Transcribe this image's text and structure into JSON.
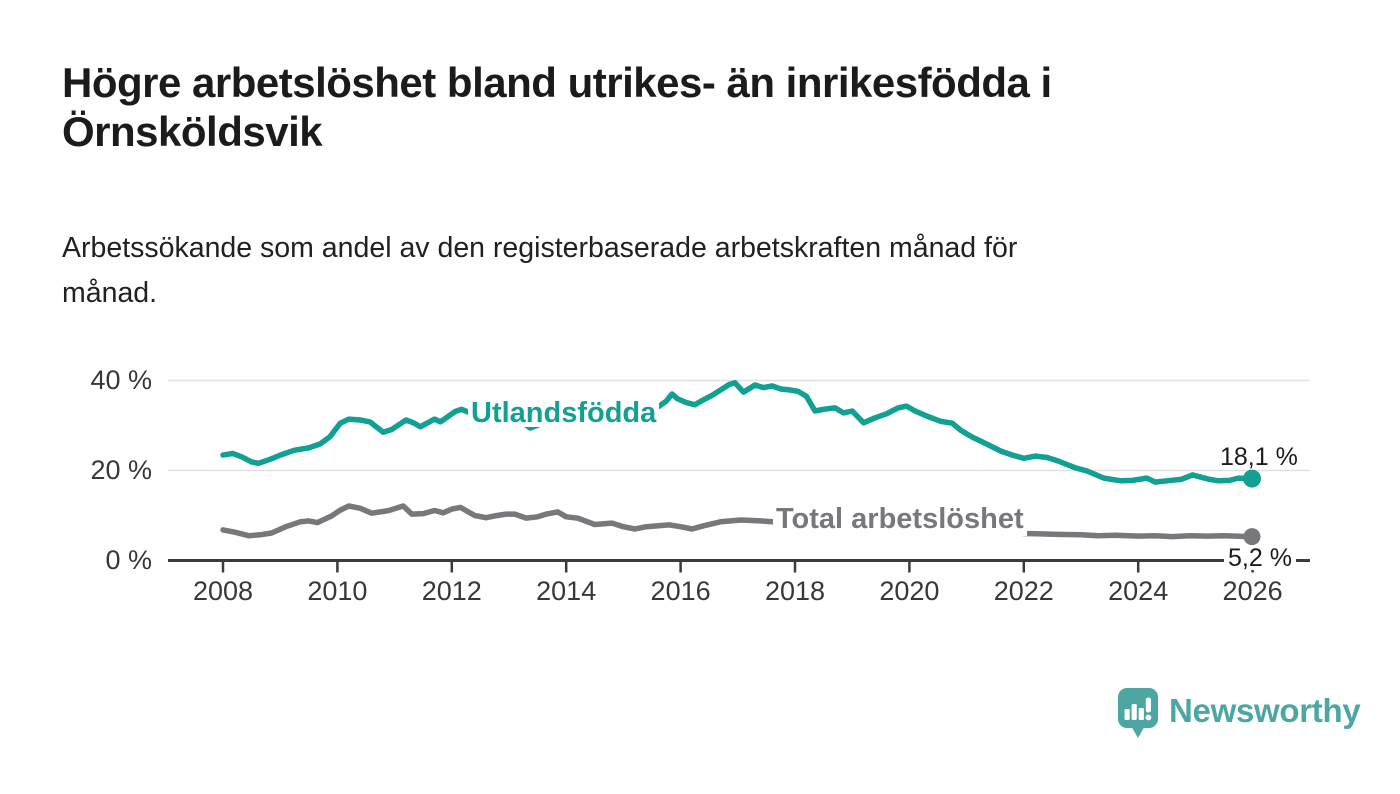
{
  "header": {
    "title_line1": "Högre arbetslöshet bland utrikes- än inrikesfödda i",
    "title_line2": "Örnsköldsvik",
    "subtitle_line1": "Arbetssökande som andel av den registerbaserade arbetskraften månad för",
    "subtitle_line2": "månad."
  },
  "footer": {
    "logo_text": "Newsworthy",
    "brand_color": "#4CA7A3",
    "logo_icon": "speech-bubble-bar-chart-icon"
  },
  "chart_data": {
    "type": "line",
    "title": "Högre arbetslöshet bland utrikes- än inrikesfödda i Örnsköldsvik",
    "subtitle": "Arbetssökande som andel av den registerbaserade arbetskraften månad för månad.",
    "unit": "%",
    "xlim": [
      2007.9,
      2026.6
    ],
    "ylim": [
      0,
      42
    ],
    "grid": "horizontal",
    "grid_color": "#E1E1E1",
    "axis_color": "#3B3B3B",
    "tick_label_color": "#383838",
    "value_label_color": "#1C1C1C",
    "y_ticks": [
      {
        "label": "0 %",
        "value": 0
      },
      {
        "label": "20 %",
        "value": 20
      },
      {
        "label": "40 %",
        "value": 40
      }
    ],
    "x_ticks": [
      {
        "label": "2008",
        "year": 2008
      },
      {
        "label": "2010",
        "year": 2010
      },
      {
        "label": "2012",
        "year": 2012
      },
      {
        "label": "2014",
        "year": 2014
      },
      {
        "label": "2016",
        "year": 2016
      },
      {
        "label": "2018",
        "year": 2018
      },
      {
        "label": "2020",
        "year": 2020
      },
      {
        "label": "2022",
        "year": 2022
      },
      {
        "label": "2024",
        "year": 2024
      },
      {
        "label": "2026",
        "year": 2026
      }
    ],
    "series": [
      {
        "name": "Utlandsfödda",
        "color": "#12A092",
        "end_label": "18,1 %",
        "end_value": 18.1,
        "points": [
          [
            2008.0,
            23.3
          ],
          [
            2008.17,
            23.7
          ],
          [
            2008.33,
            22.9
          ],
          [
            2008.5,
            21.8
          ],
          [
            2008.62,
            21.5
          ],
          [
            2008.83,
            22.4
          ],
          [
            2009.0,
            23.3
          ],
          [
            2009.25,
            24.4
          ],
          [
            2009.5,
            24.9
          ],
          [
            2009.7,
            25.8
          ],
          [
            2009.87,
            27.4
          ],
          [
            2010.05,
            30.4
          ],
          [
            2010.2,
            31.3
          ],
          [
            2010.4,
            31.1
          ],
          [
            2010.57,
            30.7
          ],
          [
            2010.8,
            28.4
          ],
          [
            2010.95,
            29.0
          ],
          [
            2011.2,
            31.1
          ],
          [
            2011.33,
            30.5
          ],
          [
            2011.45,
            29.6
          ],
          [
            2011.7,
            31.3
          ],
          [
            2011.8,
            30.7
          ],
          [
            2012.06,
            33.0
          ],
          [
            2012.17,
            33.5
          ],
          [
            2012.3,
            32.8
          ],
          [
            2012.5,
            33.8
          ],
          [
            2012.7,
            33.2
          ],
          [
            2012.9,
            32.6
          ],
          [
            2013.1,
            31.9
          ],
          [
            2013.37,
            29.3
          ],
          [
            2013.6,
            30.4
          ],
          [
            2013.8,
            31.2
          ],
          [
            2014.0,
            31.8
          ],
          [
            2014.25,
            32.4
          ],
          [
            2014.5,
            32.0
          ],
          [
            2014.75,
            32.8
          ],
          [
            2015.0,
            33.4
          ],
          [
            2015.2,
            32.6
          ],
          [
            2015.45,
            33.4
          ],
          [
            2015.58,
            33.8
          ],
          [
            2015.75,
            35.3
          ],
          [
            2015.85,
            36.9
          ],
          [
            2015.95,
            35.8
          ],
          [
            2016.1,
            35.0
          ],
          [
            2016.25,
            34.5
          ],
          [
            2016.4,
            35.6
          ],
          [
            2016.55,
            36.6
          ],
          [
            2016.7,
            37.8
          ],
          [
            2016.85,
            39.0
          ],
          [
            2016.95,
            39.4
          ],
          [
            2017.1,
            37.3
          ],
          [
            2017.3,
            38.9
          ],
          [
            2017.45,
            38.3
          ],
          [
            2017.6,
            38.7
          ],
          [
            2017.75,
            38.0
          ],
          [
            2017.9,
            37.8
          ],
          [
            2018.05,
            37.5
          ],
          [
            2018.2,
            36.4
          ],
          [
            2018.35,
            33.1
          ],
          [
            2018.5,
            33.5
          ],
          [
            2018.7,
            33.8
          ],
          [
            2018.85,
            32.7
          ],
          [
            2019.0,
            33.1
          ],
          [
            2019.2,
            30.5
          ],
          [
            2019.4,
            31.6
          ],
          [
            2019.6,
            32.5
          ],
          [
            2019.8,
            33.8
          ],
          [
            2019.95,
            34.2
          ],
          [
            2020.1,
            33.1
          ],
          [
            2020.3,
            32.0
          ],
          [
            2020.55,
            30.8
          ],
          [
            2020.75,
            30.4
          ],
          [
            2020.9,
            28.8
          ],
          [
            2021.1,
            27.3
          ],
          [
            2021.3,
            26.1
          ],
          [
            2021.6,
            24.2
          ],
          [
            2021.8,
            23.3
          ],
          [
            2022.0,
            22.6
          ],
          [
            2022.2,
            23.1
          ],
          [
            2022.4,
            22.8
          ],
          [
            2022.6,
            22.0
          ],
          [
            2022.9,
            20.5
          ],
          [
            2023.1,
            19.8
          ],
          [
            2023.4,
            18.2
          ],
          [
            2023.7,
            17.6
          ],
          [
            2023.9,
            17.7
          ],
          [
            2024.15,
            18.2
          ],
          [
            2024.3,
            17.3
          ],
          [
            2024.5,
            17.6
          ],
          [
            2024.75,
            17.9
          ],
          [
            2024.95,
            18.9
          ],
          [
            2025.1,
            18.4
          ],
          [
            2025.25,
            17.9
          ],
          [
            2025.4,
            17.6
          ],
          [
            2025.6,
            17.7
          ],
          [
            2025.75,
            18.2
          ],
          [
            2025.92,
            18.1
          ]
        ]
      },
      {
        "name": "Total arbetslöshet",
        "color": "#78787C",
        "end_label": "5,2 %",
        "end_value": 5.2,
        "points": [
          [
            2008.0,
            6.7
          ],
          [
            2008.2,
            6.2
          ],
          [
            2008.45,
            5.4
          ],
          [
            2008.65,
            5.6
          ],
          [
            2008.85,
            6.0
          ],
          [
            2009.1,
            7.4
          ],
          [
            2009.35,
            8.5
          ],
          [
            2009.5,
            8.7
          ],
          [
            2009.65,
            8.3
          ],
          [
            2009.9,
            9.8
          ],
          [
            2010.05,
            11.1
          ],
          [
            2010.2,
            12.0
          ],
          [
            2010.4,
            11.5
          ],
          [
            2010.6,
            10.4
          ],
          [
            2010.75,
            10.7
          ],
          [
            2010.9,
            11.0
          ],
          [
            2011.05,
            11.6
          ],
          [
            2011.15,
            12.0
          ],
          [
            2011.3,
            10.2
          ],
          [
            2011.5,
            10.3
          ],
          [
            2011.7,
            11.0
          ],
          [
            2011.85,
            10.5
          ],
          [
            2012.0,
            11.3
          ],
          [
            2012.15,
            11.7
          ],
          [
            2012.4,
            9.9
          ],
          [
            2012.6,
            9.4
          ],
          [
            2012.75,
            9.8
          ],
          [
            2012.95,
            10.2
          ],
          [
            2013.1,
            10.2
          ],
          [
            2013.3,
            9.3
          ],
          [
            2013.5,
            9.6
          ],
          [
            2013.65,
            10.2
          ],
          [
            2013.85,
            10.7
          ],
          [
            2014.0,
            9.6
          ],
          [
            2014.2,
            9.3
          ],
          [
            2014.35,
            8.6
          ],
          [
            2014.5,
            7.9
          ],
          [
            2014.8,
            8.2
          ],
          [
            2015.0,
            7.4
          ],
          [
            2015.2,
            6.9
          ],
          [
            2015.4,
            7.4
          ],
          [
            2015.8,
            7.8
          ],
          [
            2016.0,
            7.4
          ],
          [
            2016.2,
            6.9
          ],
          [
            2016.4,
            7.6
          ],
          [
            2016.7,
            8.5
          ],
          [
            2017.05,
            8.9
          ],
          [
            2017.4,
            8.7
          ],
          [
            2017.6,
            8.5
          ],
          [
            2018.0,
            8.2
          ],
          [
            2018.5,
            7.6
          ],
          [
            2019.0,
            7.2
          ],
          [
            2019.5,
            7.0
          ],
          [
            2020.0,
            7.4
          ],
          [
            2020.4,
            8.8
          ],
          [
            2020.8,
            8.4
          ],
          [
            2021.2,
            7.6
          ],
          [
            2021.6,
            6.8
          ],
          [
            2022.0,
            5.9
          ],
          [
            2022.3,
            5.8
          ],
          [
            2022.6,
            5.7
          ],
          [
            2023.0,
            5.6
          ],
          [
            2023.3,
            5.4
          ],
          [
            2023.6,
            5.5
          ],
          [
            2024.0,
            5.3
          ],
          [
            2024.3,
            5.4
          ],
          [
            2024.6,
            5.2
          ],
          [
            2024.9,
            5.4
          ],
          [
            2025.2,
            5.3
          ],
          [
            2025.5,
            5.4
          ],
          [
            2025.7,
            5.3
          ],
          [
            2025.92,
            5.2
          ]
        ]
      }
    ]
  }
}
